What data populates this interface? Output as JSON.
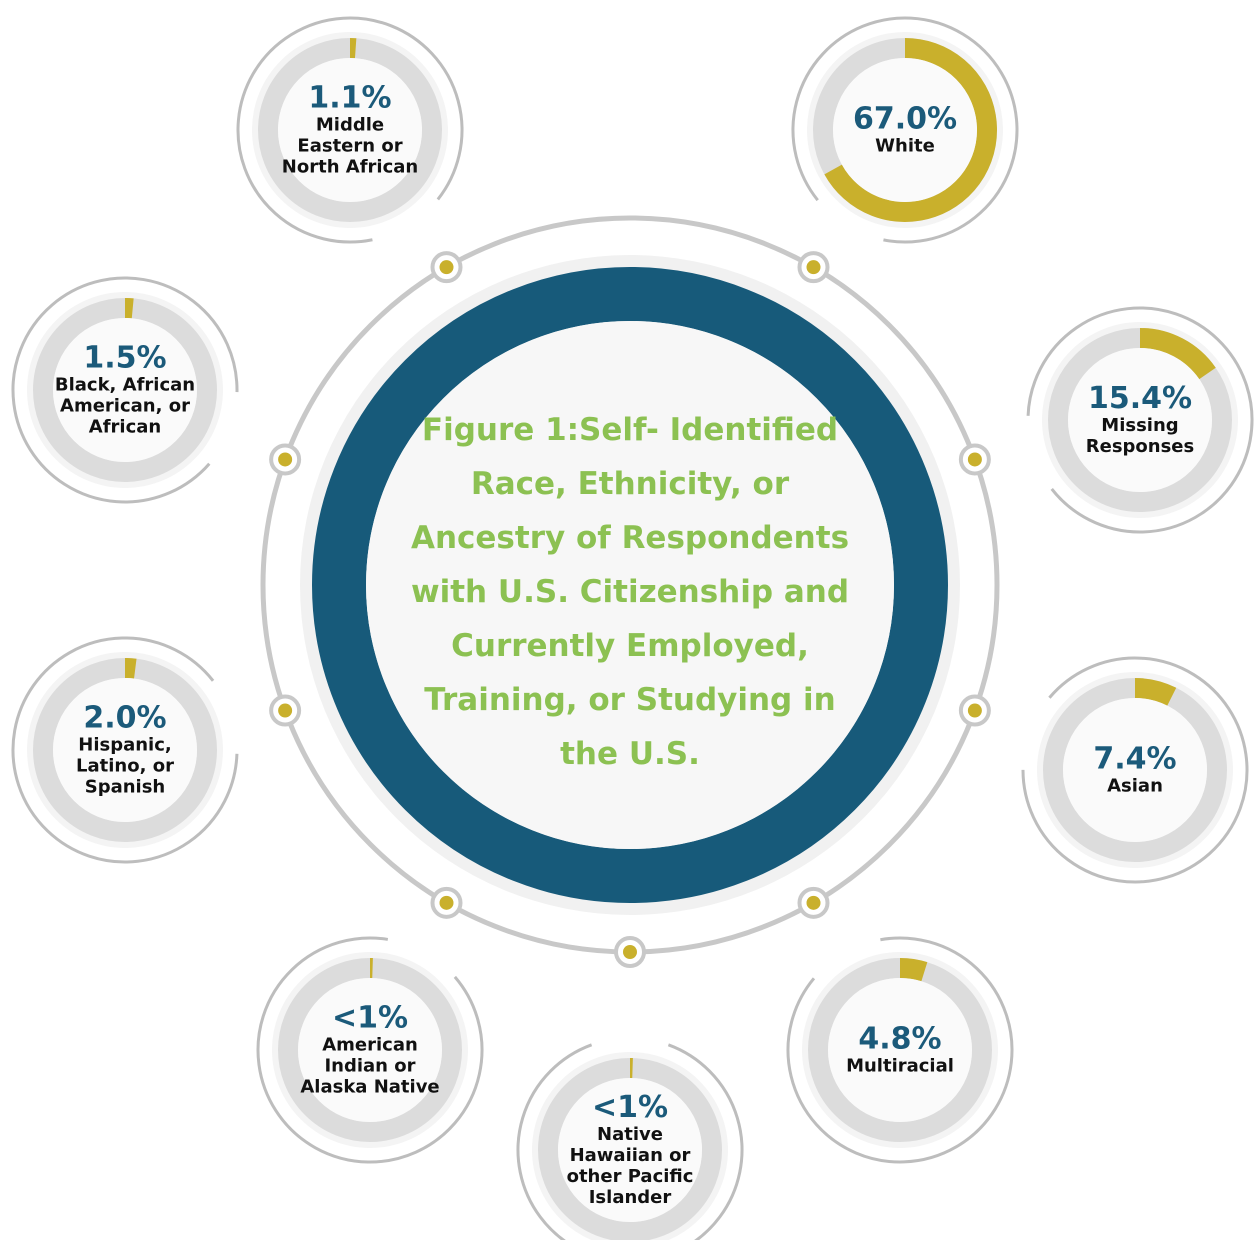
{
  "chart_data": {
    "type": "donut",
    "title": "Figure 1:Self- Identified Race, Ethnicity, or Ancestry of Respondents with U.S. Citizenship and Currently Employed, Training, or Studying in the U.S.",
    "categories": [
      "Middle Eastern or North African",
      "White",
      "Missing Responses",
      "Asian",
      "Multiracial",
      "Native Hawaiian or other Pacific Islander",
      "American Indian or Alaska Native",
      "Hispanic, Latino, or Spanish",
      "Black, African American, or African"
    ],
    "values": [
      1.1,
      67.0,
      15.4,
      7.4,
      4.8,
      0.5,
      0.5,
      2.0,
      1.5
    ],
    "value_labels": [
      "1.1%",
      "67.0%",
      "15.4%",
      "7.4%",
      "4.8%",
      "<1%",
      "<1%",
      "2.0%",
      "1.5%"
    ],
    "color": "#c9b02c",
    "track_color": "#dcdcdc",
    "ring_color": "#175a7a"
  }
}
